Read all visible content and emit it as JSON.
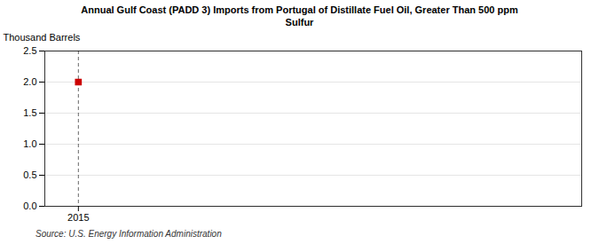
{
  "chart_data": {
    "type": "scatter",
    "title": "Annual Gulf Coast (PADD 3) Imports from Portugal of Distillate Fuel Oil, Greater Than 500 ppm\nSulfur",
    "ylabel": "Thousand Barrels",
    "source": "Source: U.S. Energy Information Administration",
    "x": [
      2015
    ],
    "values": [
      2.0
    ],
    "color": "#cc0000",
    "marker": "square",
    "xlim": [
      2014.4,
      2024.0
    ],
    "ylim": [
      0.0,
      2.5
    ],
    "xticks": [
      2015
    ],
    "yticks": [
      {
        "value": 0.0,
        "label": "0.0"
      },
      0.5,
      {
        "value": 1.0,
        "label": "1.0"
      },
      1.5,
      {
        "value": 2.0,
        "label": "2.0"
      },
      2.5
    ],
    "grid": true,
    "vline_x": 2015
  }
}
